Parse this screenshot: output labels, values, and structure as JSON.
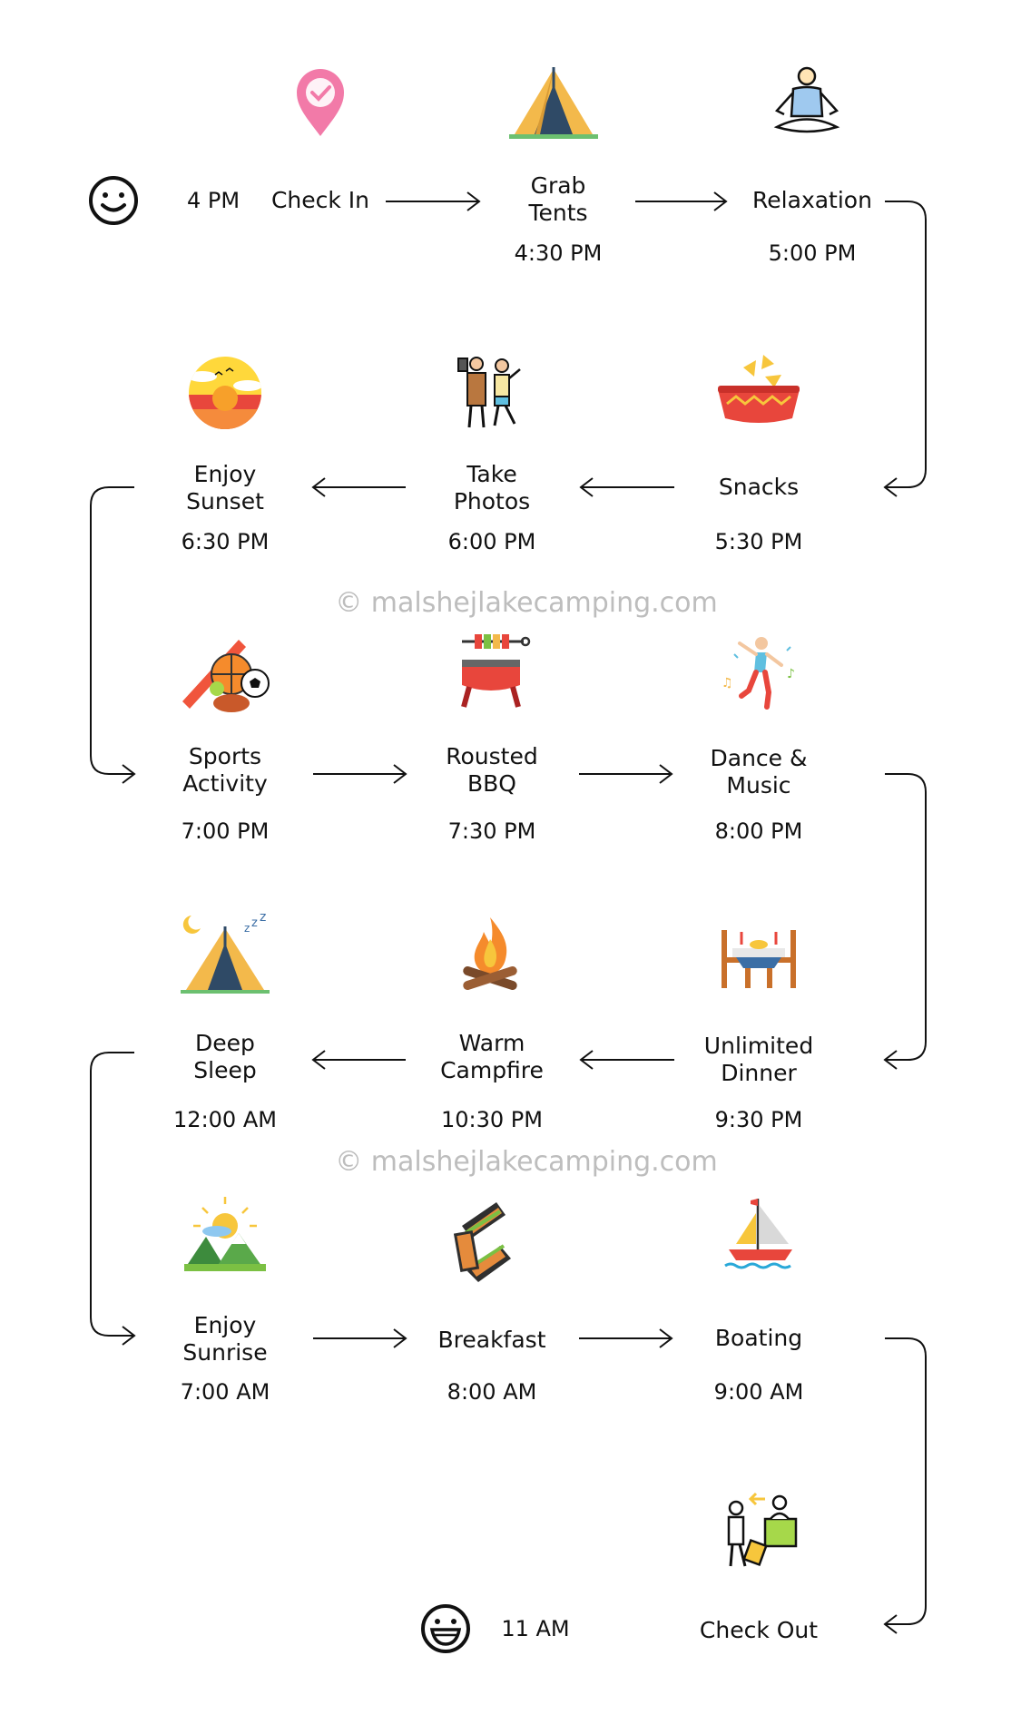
{
  "start": {
    "time": "4 PM",
    "icon": "smiley-face-icon"
  },
  "end": {
    "time": "11 AM",
    "icon": "grin-face-icon"
  },
  "watermark": "© malshejlakecamping.com",
  "steps": [
    {
      "label": [
        "Check In"
      ],
      "time": "",
      "icon": "location-pin-icon"
    },
    {
      "label": [
        "Grab",
        "Tents"
      ],
      "time": "4:30 PM",
      "icon": "tent-icon"
    },
    {
      "label": [
        "Relaxation"
      ],
      "time": "5:00 PM",
      "icon": "meditation-icon"
    },
    {
      "label": [
        "Snacks"
      ],
      "time": "5:30 PM",
      "icon": "nachos-icon"
    },
    {
      "label": [
        "Take",
        "Photos"
      ],
      "time": "6:00 PM",
      "icon": "photo-couple-icon"
    },
    {
      "label": [
        "Enjoy",
        "Sunset"
      ],
      "time": "6:30 PM",
      "icon": "sunset-icon"
    },
    {
      "label": [
        "Sports",
        "Activity"
      ],
      "time": "7:00 PM",
      "icon": "sports-balls-icon"
    },
    {
      "label": [
        "Rousted",
        "BBQ"
      ],
      "time": "7:30 PM",
      "icon": "bbq-grill-icon"
    },
    {
      "label": [
        "Dance &",
        "Music"
      ],
      "time": "8:00 PM",
      "icon": "dancer-icon"
    },
    {
      "label": [
        "Unlimited",
        "Dinner"
      ],
      "time": "9:30 PM",
      "icon": "dinner-table-icon"
    },
    {
      "label": [
        "Warm",
        "Campfire"
      ],
      "time": "10:30 PM",
      "icon": "campfire-icon"
    },
    {
      "label": [
        "Deep",
        "Sleep"
      ],
      "time": "12:00 AM",
      "icon": "sleeping-tent-icon"
    },
    {
      "label": [
        "Enjoy",
        "Sunrise"
      ],
      "time": "7:00 AM",
      "icon": "sunrise-icon"
    },
    {
      "label": [
        "Breakfast"
      ],
      "time": "8:00 AM",
      "icon": "sandwich-icon"
    },
    {
      "label": [
        "Boating"
      ],
      "time": "9:00 AM",
      "icon": "sailboat-icon"
    },
    {
      "label": [
        "Check Out"
      ],
      "time": "",
      "icon": "checkout-desk-icon"
    }
  ]
}
